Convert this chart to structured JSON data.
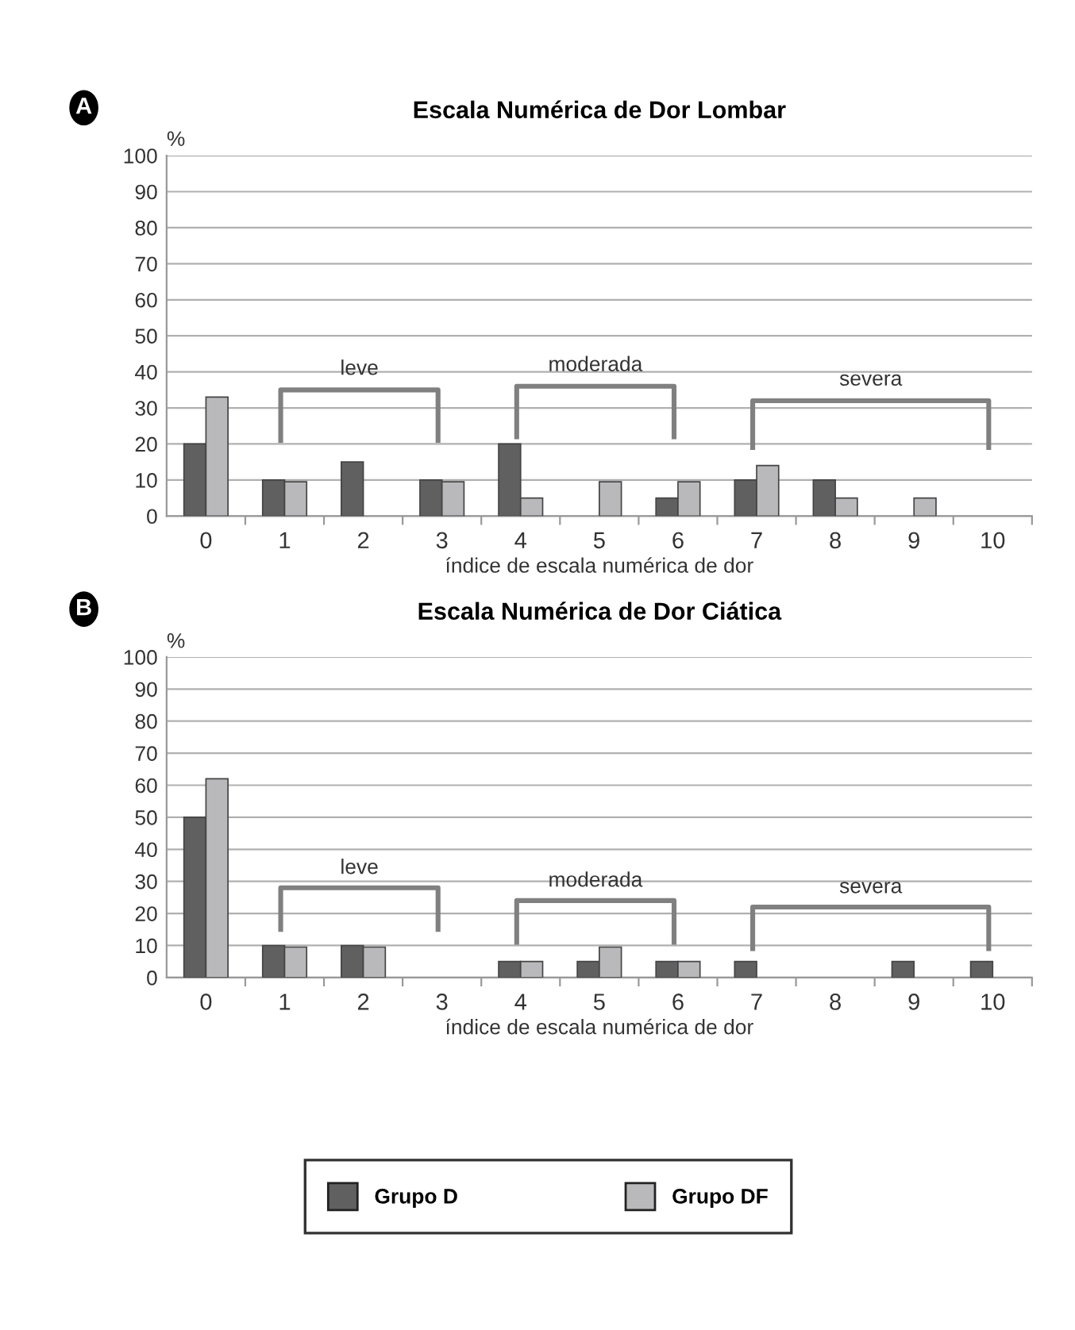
{
  "chart_data": [
    {
      "type": "bar",
      "subtitle": "A",
      "title": "Escala Numérica de Dor Lombar",
      "xlabel": "índice de escala numérica de dor",
      "ylabel": "%",
      "categories": [
        "0",
        "1",
        "2",
        "3",
        "4",
        "5",
        "6",
        "7",
        "8",
        "9",
        "10"
      ],
      "series": [
        {
          "color": "#606060",
          "values": [
            20,
            10,
            15,
            10,
            20,
            null,
            5,
            10,
            10,
            null,
            null
          ]
        },
        {
          "color": "#b9b9bb",
          "values": [
            33,
            9.5,
            null,
            9.5,
            5,
            9.5,
            9.5,
            14,
            5,
            5,
            null
          ]
        }
      ],
      "ylim": [
        0,
        100
      ],
      "yticks": [
        0,
        10,
        20,
        30,
        40,
        50,
        60,
        70,
        80,
        90,
        100
      ],
      "grid": "y",
      "annotations": [
        "leve",
        "moderada",
        "severa"
      ]
    },
    {
      "type": "bar",
      "subtitle": "B",
      "title": "Escala Numérica de Dor Ciática",
      "xlabel": "índice de escala numérica de dor",
      "ylabel": "%",
      "categories": [
        "0",
        "1",
        "2",
        "3",
        "4",
        "5",
        "6",
        "7",
        "8",
        "9",
        "10"
      ],
      "series": [
        {
          "name": "Grupo D",
          "color": "#606060",
          "values": [
            50,
            10,
            10,
            null,
            5,
            5,
            5,
            5,
            null,
            5,
            5
          ]
        },
        {
          "name": "Grupo DF",
          "color": "#b9b9bb",
          "values": [
            62,
            9.5,
            9.5,
            null,
            5,
            9.5,
            5,
            null,
            null,
            null,
            null
          ]
        }
      ],
      "ylim": [
        0,
        100
      ],
      "yticks": [
        0,
        10,
        20,
        30,
        40,
        50,
        60,
        70,
        80,
        90,
        100
      ],
      "grid": "y",
      "legend": "bottom",
      "annotations": [
        "leve",
        "moderada",
        "severa"
      ]
    }
  ]
}
